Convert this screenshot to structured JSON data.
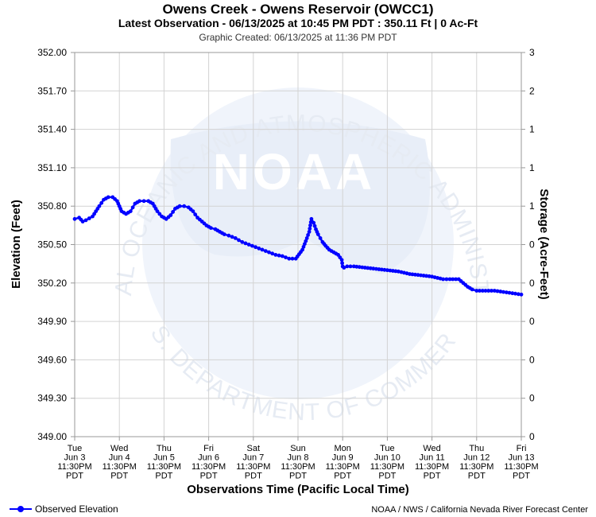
{
  "header": {
    "title": "Owens Creek - Owens Reservoir (OWCC1)",
    "subtitle": "Latest Observation - 06/13/2025 at 10:45 PM PDT : 350.11 Ft | 0 Ac-Ft",
    "created": "Graphic Created: 06/13/2025 at 11:36 PM PDT"
  },
  "legend": {
    "label": "Observed Elevation"
  },
  "credit": "NOAA / NWS / California Nevada River Forecast Center",
  "watermark": {
    "logo_text": "NOAA",
    "ring_top": "NATIONAL OCEANIC AND ATMOSPHERIC ADMINISTRATION",
    "ring_bottom": "U.S. DEPARTMENT OF COMMERCE"
  },
  "colors": {
    "series": "#0000ff",
    "grid": "#d3d3d3",
    "watermark": "#e8eef8"
  },
  "chart_data": {
    "type": "line",
    "xlabel": "Observations Time (Pacific Local Time)",
    "ylabel": "Elevation (Feet)",
    "y2label": "Storage (Acre-Feet)",
    "ylim": [
      349.0,
      352.0
    ],
    "yticks": [
      "349.00",
      "349.30",
      "349.60",
      "349.90",
      "350.20",
      "350.50",
      "350.80",
      "351.10",
      "351.40",
      "351.70",
      "352.00"
    ],
    "y2ticks": [
      "0",
      "0",
      "0",
      "0",
      "0",
      "0",
      "1",
      "1",
      "1",
      "2",
      "3"
    ],
    "xlim": [
      0,
      10
    ],
    "xticks": [
      [
        "Tue",
        "Jun 3",
        "11:30PM",
        "PDT"
      ],
      [
        "Wed",
        "Jun 4",
        "11:30PM",
        "PDT"
      ],
      [
        "Thu",
        "Jun 5",
        "11:30PM",
        "PDT"
      ],
      [
        "Fri",
        "Jun 6",
        "11:30PM",
        "PDT"
      ],
      [
        "Sat",
        "Jun 7",
        "11:30PM",
        "PDT"
      ],
      [
        "Sun",
        "Jun 8",
        "11:30PM",
        "PDT"
      ],
      [
        "Mon",
        "Jun 9",
        "11:30PM",
        "PDT"
      ],
      [
        "Tue",
        "Jun 10",
        "11:30PM",
        "PDT"
      ],
      [
        "Wed",
        "Jun 11",
        "11:30PM",
        "PDT"
      ],
      [
        "Thu",
        "Jun 12",
        "11:30PM",
        "PDT"
      ],
      [
        "Fri",
        "Jun 13",
        "11:30PM",
        "PDT"
      ]
    ],
    "grid": true,
    "series": [
      {
        "name": "Observed Elevation",
        "x": [
          0.0,
          0.1,
          0.18,
          0.25,
          0.4,
          0.55,
          0.65,
          0.75,
          0.85,
          0.95,
          1.05,
          1.15,
          1.25,
          1.3,
          1.35,
          1.45,
          1.55,
          1.65,
          1.75,
          1.85,
          1.95,
          2.05,
          2.15,
          2.25,
          2.35,
          2.45,
          2.55,
          2.65,
          2.75,
          2.85,
          2.95,
          3.05,
          3.15,
          3.25,
          3.35,
          3.45,
          3.6,
          3.75,
          3.9,
          4.05,
          4.2,
          4.35,
          4.5,
          4.65,
          4.8,
          4.95,
          5.1,
          5.2,
          5.25,
          5.3,
          5.35,
          5.4,
          5.45,
          5.5,
          5.55,
          5.62,
          5.7,
          5.8,
          5.9,
          5.98,
          6.0,
          6.03,
          6.1,
          6.25,
          6.5,
          6.75,
          7.0,
          7.25,
          7.5,
          7.75,
          8.0,
          8.25,
          8.4,
          8.6,
          8.8,
          8.9,
          9.0,
          9.2,
          9.4,
          9.6,
          9.8,
          10.0
        ],
        "y": [
          350.7,
          350.71,
          350.68,
          350.69,
          350.72,
          350.8,
          350.85,
          350.87,
          350.87,
          350.84,
          350.76,
          350.74,
          350.76,
          350.79,
          350.82,
          350.84,
          350.84,
          350.84,
          350.82,
          350.76,
          350.72,
          350.7,
          350.73,
          350.78,
          350.8,
          350.8,
          350.79,
          350.76,
          350.71,
          350.68,
          350.65,
          350.63,
          350.62,
          350.6,
          350.58,
          350.57,
          350.55,
          350.52,
          350.5,
          350.48,
          350.46,
          350.44,
          350.42,
          350.41,
          350.39,
          350.39,
          350.46,
          350.55,
          350.6,
          350.7,
          350.67,
          350.62,
          350.58,
          350.55,
          350.52,
          350.49,
          350.46,
          350.44,
          350.42,
          350.38,
          350.33,
          350.32,
          350.33,
          350.33,
          350.32,
          350.31,
          350.3,
          350.29,
          350.27,
          350.26,
          350.25,
          350.23,
          350.23,
          350.23,
          350.17,
          350.15,
          350.14,
          350.14,
          350.14,
          350.13,
          350.12,
          350.11
        ]
      }
    ]
  }
}
